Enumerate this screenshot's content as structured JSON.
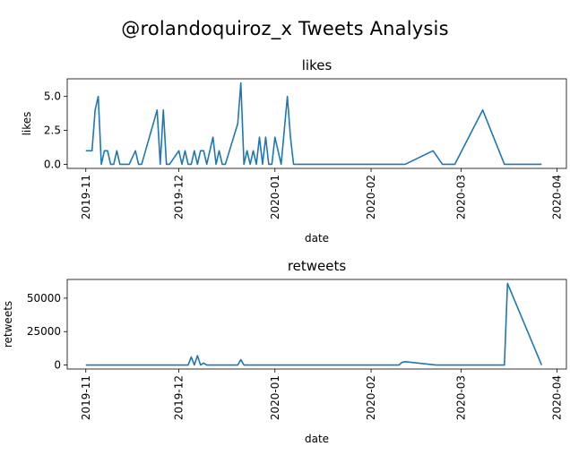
{
  "figure_title": "@rolandoquiroz_x Tweets Analysis",
  "chart_data": [
    {
      "type": "line",
      "title": "likes",
      "xlabel": "date",
      "ylabel": "likes",
      "x_ticks": [
        "2019-11",
        "2019-12",
        "2020-01",
        "2020-02",
        "2020-03",
        "2020-04"
      ],
      "y_ticks": [
        "0.0",
        "2.5",
        "5.0"
      ],
      "xlim": [
        "2019-10-26",
        "2020-04-04"
      ],
      "ylim": [
        -0.3,
        6.3
      ],
      "grid": false,
      "color": "#1f77b4",
      "series": [
        {
          "x": [
            "2019-11-01",
            "2019-11-03",
            "2019-11-04",
            "2019-11-05",
            "2019-11-06",
            "2019-11-07",
            "2019-11-08",
            "2019-11-09",
            "2019-11-10",
            "2019-11-11",
            "2019-11-12",
            "2019-11-13",
            "2019-11-15",
            "2019-11-17",
            "2019-11-18",
            "2019-11-19",
            "2019-11-24",
            "2019-11-25",
            "2019-11-26",
            "2019-11-27",
            "2019-11-28",
            "2019-12-01",
            "2019-12-02",
            "2019-12-03",
            "2019-12-04",
            "2019-12-05",
            "2019-12-06",
            "2019-12-07",
            "2019-12-08",
            "2019-12-09",
            "2019-12-10",
            "2019-12-12",
            "2019-12-13",
            "2019-12-14",
            "2019-12-15",
            "2019-12-16",
            "2019-12-20",
            "2019-12-21",
            "2019-12-22",
            "2019-12-23",
            "2019-12-24",
            "2019-12-25",
            "2019-12-26",
            "2019-12-27",
            "2019-12-28",
            "2019-12-29",
            "2019-12-30",
            "2019-12-31",
            "2020-01-01",
            "2020-01-02",
            "2020-01-03",
            "2020-01-05",
            "2020-01-06",
            "2020-01-07",
            "2020-02-12",
            "2020-02-21",
            "2020-02-24",
            "2020-02-28",
            "2020-03-08",
            "2020-03-15",
            "2020-03-27"
          ],
          "values": [
            1,
            1,
            4,
            5,
            0,
            1,
            1,
            0,
            0,
            1,
            0,
            0,
            0,
            1,
            0,
            0,
            4,
            0,
            4,
            0,
            0,
            1,
            0,
            1,
            0,
            0,
            1,
            0,
            1,
            1,
            0,
            2,
            0,
            1,
            0,
            0,
            3,
            6,
            0,
            1,
            0,
            1,
            0,
            2,
            0,
            2,
            0,
            0,
            2,
            1,
            0,
            5,
            2,
            0,
            0,
            1,
            0,
            0,
            4,
            0,
            0
          ]
        }
      ]
    },
    {
      "type": "line",
      "title": "retweets",
      "xlabel": "date",
      "ylabel": "retweets",
      "x_ticks": [
        "2019-11",
        "2019-12",
        "2020-01",
        "2020-02",
        "2020-03",
        "2020-04"
      ],
      "y_ticks": [
        "0",
        "25000",
        "50000"
      ],
      "xlim": [
        "2019-10-26",
        "2020-04-04"
      ],
      "ylim": [
        -3000,
        64000
      ],
      "grid": false,
      "color": "#1f77b4",
      "series": [
        {
          "x": [
            "2019-11-01",
            "2019-12-04",
            "2019-12-05",
            "2019-12-06",
            "2019-12-07",
            "2019-12-08",
            "2019-12-09",
            "2019-12-10",
            "2019-12-15",
            "2019-12-20",
            "2019-12-21",
            "2019-12-22",
            "2020-02-10",
            "2020-02-11",
            "2020-02-12",
            "2020-02-22",
            "2020-03-15",
            "2020-03-16",
            "2020-03-27"
          ],
          "values": [
            0,
            0,
            6000,
            0,
            7000,
            0,
            1500,
            0,
            0,
            0,
            4000,
            0,
            0,
            2000,
            2500,
            0,
            0,
            61000,
            0
          ]
        }
      ]
    }
  ]
}
